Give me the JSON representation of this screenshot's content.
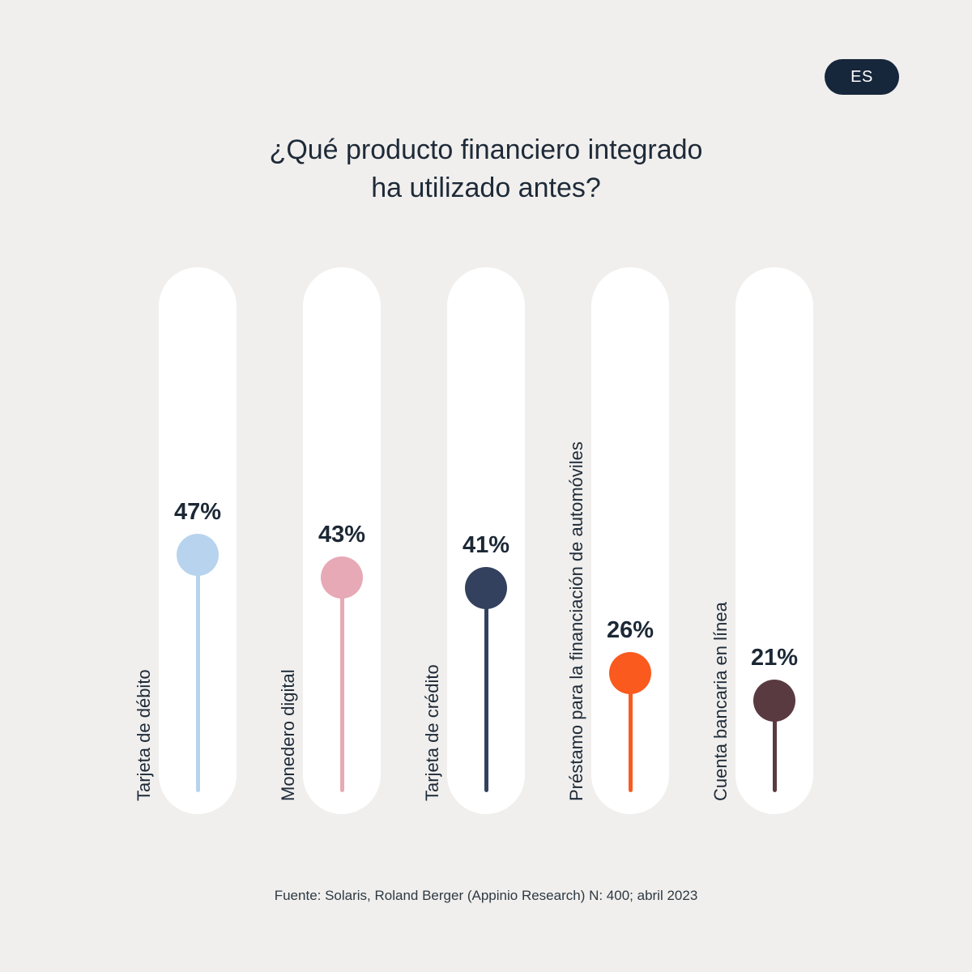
{
  "page": {
    "language_badge": "ES",
    "title_line1": "¿Qué producto financiero integrado",
    "title_line2": "ha utilizado antes?",
    "source": "Fuente: Solaris, Roland Berger (Appinio Research) N: 400; abril 2023",
    "background_color": "#f0efed",
    "badge_color": "#16263b",
    "text_color": "#1e2a38"
  },
  "chart_data": {
    "type": "bar",
    "subtype": "lollipop",
    "orientation": "vertical",
    "title": "¿Qué producto financiero integrado ha utilizado antes?",
    "categories": [
      "Tarjeta de débito",
      "Monedero digital",
      "Tarjeta de crédito",
      "Préstamo para la financiación de automóviles",
      "Cuenta bancaria en línea"
    ],
    "values": [
      47,
      43,
      41,
      26,
      21
    ],
    "value_labels": [
      "47%",
      "43%",
      "41%",
      "26%",
      "21%"
    ],
    "colors": [
      "#b7d3ee",
      "#e6a9b5",
      "#33415e",
      "#fa5a1e",
      "#5a3a41"
    ],
    "xlabel": "",
    "ylabel": "",
    "ylim": [
      0,
      100
    ],
    "grid": false,
    "legend": false,
    "track_color": "#ffffff",
    "label_text_color": "#1c2836"
  }
}
